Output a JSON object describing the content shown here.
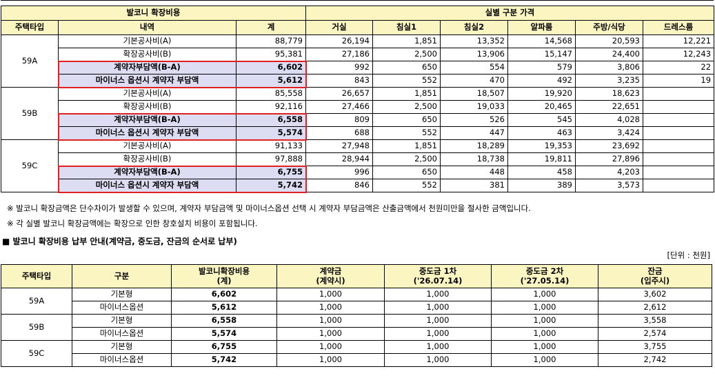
{
  "table1": {
    "header1": {
      "left": "발코니 확장비용",
      "right": "실별 구분 가격"
    },
    "header2": [
      "주택타입",
      "내역",
      "계",
      "거실",
      "침실1",
      "침실2",
      "알파룸",
      "주방/식당",
      "드레스룸"
    ],
    "groups": [
      {
        "type": "59A",
        "rows": [
          {
            "label": "기본공사비(A)",
            "values": [
              "88,779",
              "26,194",
              "1,851",
              "13,352",
              "14,568",
              "20,593",
              "12,221"
            ]
          },
          {
            "label": "확장공사비(B)",
            "values": [
              "95,381",
              "27,186",
              "2,500",
              "13,906",
              "15,147",
              "24,400",
              "12,243"
            ]
          },
          {
            "label": "계약자부담액(B-A)",
            "values": [
              "6,602",
              "992",
              "650",
              "554",
              "579",
              "3,806",
              "22"
            ]
          },
          {
            "label": "마이너스 옵션시 계약자 부담액",
            "values": [
              "5,612",
              "843",
              "552",
              "470",
              "492",
              "3,235",
              "19"
            ]
          }
        ]
      },
      {
        "type": "59B",
        "rows": [
          {
            "label": "기본공사비(A)",
            "values": [
              "85,558",
              "26,657",
              "1,851",
              "18,507",
              "19,920",
              "18,623",
              ""
            ]
          },
          {
            "label": "확장공사비(B)",
            "values": [
              "92,116",
              "27,466",
              "2,500",
              "19,033",
              "20,465",
              "22,651",
              ""
            ]
          },
          {
            "label": "계약자부담액(B-A)",
            "values": [
              "6,558",
              "809",
              "650",
              "526",
              "545",
              "4,028",
              ""
            ]
          },
          {
            "label": "마이너스 옵션시 계약자 부담액",
            "values": [
              "5,574",
              "688",
              "552",
              "447",
              "463",
              "3,424",
              ""
            ]
          }
        ]
      },
      {
        "type": "59C",
        "rows": [
          {
            "label": "기본공사비(A)",
            "values": [
              "91,133",
              "27,948",
              "1,851",
              "18,289",
              "19,353",
              "23,692",
              ""
            ]
          },
          {
            "label": "확장공사비(B)",
            "values": [
              "97,888",
              "28,944",
              "2,500",
              "18,738",
              "19,811",
              "27,896",
              ""
            ]
          },
          {
            "label": "계약자부담액(B-A)",
            "values": [
              "6,755",
              "996",
              "650",
              "448",
              "458",
              "4,203",
              ""
            ]
          },
          {
            "label": "마이너스 옵션시 계약자 부담액",
            "values": [
              "5,742",
              "846",
              "552",
              "381",
              "389",
              "3,573",
              ""
            ]
          }
        ]
      }
    ]
  },
  "notes": [
    "※ 발코니 확장금액은 단수차이가 발생할 수 있으며, 계약자 부담금액 및 마이너스옵션 선택 시 계약자 부담금액은 산출금액에서 천원미만을 절사한 금액입니다.",
    "※ 각 실별 발코니 확장금액에는 확장으로 인한 창호설치 비용이 포함됩니다."
  ],
  "section_title": "■ 발코니 확장비용 납부 안내(계약금, 중도금, 잔금의 순서로 납부)",
  "unit": "[단위 : 천원]",
  "table2": {
    "headers": [
      [
        "주택타입",
        ""
      ],
      [
        "구분",
        ""
      ],
      [
        "발코니확장비용",
        "(계)"
      ],
      [
        "계약금",
        "(계약시)"
      ],
      [
        "중도금 1차",
        "('26.07.14)"
      ],
      [
        "중도금 2차",
        "('27.05.14)"
      ],
      [
        "잔금",
        "(입주시)"
      ]
    ],
    "groups": [
      {
        "type": "59A",
        "rows": [
          {
            "kind": "기본형",
            "values": [
              "6,602",
              "1,000",
              "1,000",
              "1,000",
              "3,602"
            ]
          },
          {
            "kind": "마이너스옵션",
            "values": [
              "5,612",
              "1,000",
              "1,000",
              "1,000",
              "2,612"
            ]
          }
        ]
      },
      {
        "type": "59B",
        "rows": [
          {
            "kind": "기본형",
            "values": [
              "6,558",
              "1,000",
              "1,000",
              "1,000",
              "3,558"
            ]
          },
          {
            "kind": "마이너스옵션",
            "values": [
              "5,574",
              "1,000",
              "1,000",
              "1,000",
              "2,574"
            ]
          }
        ]
      },
      {
        "type": "59C",
        "rows": [
          {
            "kind": "기본형",
            "values": [
              "6,755",
              "1,000",
              "1,000",
              "1,000",
              "3,755"
            ]
          },
          {
            "kind": "마이너스옵션",
            "values": [
              "5,742",
              "1,000",
              "1,000",
              "1,000",
              "2,742"
            ]
          }
        ]
      }
    ]
  },
  "colors": {
    "header_yellow": "#fbf5c1",
    "highlight_lavender": "#dcdcf3",
    "red_box": "#e02020"
  }
}
